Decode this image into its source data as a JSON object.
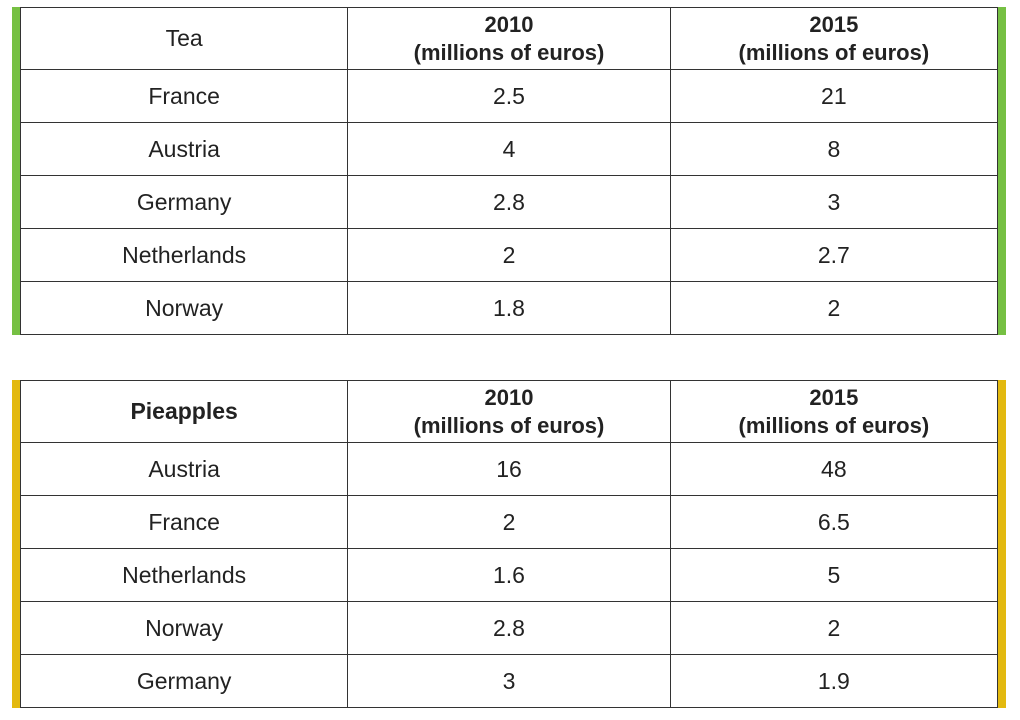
{
  "chart_data": [
    {
      "type": "table",
      "corner_label": "Tea",
      "corner_bold": false,
      "accent_color": "#76c043",
      "columns": [
        {
          "year": "2010",
          "unit": "(millions of euros)"
        },
        {
          "year": "2015",
          "unit": "(millions of euros)"
        }
      ],
      "rows": [
        {
          "country": "France",
          "values": [
            "2.5",
            "21"
          ]
        },
        {
          "country": "Austria",
          "values": [
            "4",
            "8"
          ]
        },
        {
          "country": "Germany",
          "values": [
            "2.8",
            "3"
          ]
        },
        {
          "country": "Netherlands",
          "values": [
            "2",
            "2.7"
          ]
        },
        {
          "country": "Norway",
          "values": [
            "1.8",
            "2"
          ]
        }
      ]
    },
    {
      "type": "table",
      "corner_label": "Pieapples",
      "corner_bold": true,
      "accent_color": "#e3b90f",
      "columns": [
        {
          "year": "2010",
          "unit": "(millions of euros)"
        },
        {
          "year": "2015",
          "unit": "(millions of euros)"
        }
      ],
      "rows": [
        {
          "country": "Austria",
          "values": [
            "16",
            "48"
          ]
        },
        {
          "country": "France",
          "values": [
            "2",
            "6.5"
          ]
        },
        {
          "country": "Netherlands",
          "values": [
            "1.6",
            "5"
          ]
        },
        {
          "country": "Norway",
          "values": [
            "2.8",
            "2"
          ]
        },
        {
          "country": "Germany",
          "values": [
            "3",
            "1.9"
          ]
        }
      ]
    }
  ]
}
